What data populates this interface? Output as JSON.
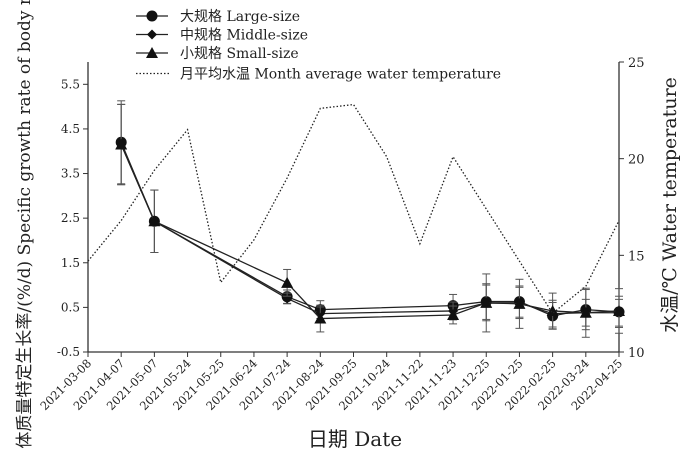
{
  "chart_data": {
    "type": "line",
    "xlabel": "日期 Date",
    "ylabel": "体质量特定生长率/(%/d) Specific growth rate of body mass",
    "y2label": "水温/℃ Water temperature",
    "ylim": [
      -0.5,
      6.0
    ],
    "yticks": [
      -0.5,
      0.5,
      1.5,
      2.5,
      3.5,
      4.5,
      5.5
    ],
    "y2lim": [
      10,
      25
    ],
    "y2ticks": [
      10,
      15,
      20,
      25
    ],
    "categories": [
      "2021-03-08",
      "2021-04-07",
      "2021-05-07",
      "2021-05-24",
      "2021-05-25",
      "2021-06-24",
      "2021-07-24",
      "2021-08-24",
      "2021-09-25",
      "2021-10-24",
      "2021-11-22",
      "2021-11-23",
      "2021-12-25",
      "2022-01-25",
      "2022-02-25",
      "2022-03-24",
      "2022-04-25"
    ],
    "legend_position": "top-left",
    "series": [
      {
        "name": "大规格 Large-size",
        "marker": "circle",
        "values": [
          null,
          4.2,
          2.43,
          null,
          null,
          null,
          0.74,
          0.45,
          null,
          null,
          null,
          0.54,
          0.63,
          0.63,
          0.31,
          0.45,
          0.4
        ],
        "errors": [
          null,
          0.93,
          0.7,
          null,
          null,
          null,
          0.15,
          0.2,
          null,
          null,
          null,
          0.25,
          0.4,
          0.35,
          0.3,
          0.45,
          0.35
        ]
      },
      {
        "name": "中规格 Middle-size",
        "marker": "diamond",
        "values": [
          null,
          4.15,
          2.43,
          null,
          null,
          null,
          0.7,
          0.36,
          null,
          null,
          null,
          0.42,
          0.6,
          0.6,
          0.36,
          0.38,
          0.38
        ],
        "errors": [
          null,
          0.9,
          0.7,
          null,
          null,
          null,
          0.12,
          0.15,
          null,
          null,
          null,
          0.2,
          0.4,
          0.35,
          0.3,
          0.3,
          0.3
        ]
      },
      {
        "name": "小规格 Small-size",
        "marker": "triangle",
        "values": [
          null,
          4.15,
          2.43,
          null,
          null,
          null,
          1.05,
          0.25,
          null,
          null,
          null,
          0.33,
          0.6,
          0.58,
          0.42,
          0.38,
          0.42
        ],
        "errors": [
          null,
          0.9,
          0.7,
          null,
          null,
          null,
          0.3,
          0.3,
          null,
          null,
          null,
          0.2,
          0.65,
          0.55,
          0.4,
          0.55,
          0.5
        ]
      },
      {
        "name": "月平均水温 Month average water temperature",
        "axis": "right",
        "style": "dotted",
        "values": [
          14.7,
          16.8,
          19.4,
          21.5,
          13.6,
          15.8,
          19.0,
          22.6,
          22.8,
          20.1,
          15.6,
          20.1,
          17.4,
          14.7,
          12.0,
          13.4,
          16.8
        ]
      }
    ]
  }
}
